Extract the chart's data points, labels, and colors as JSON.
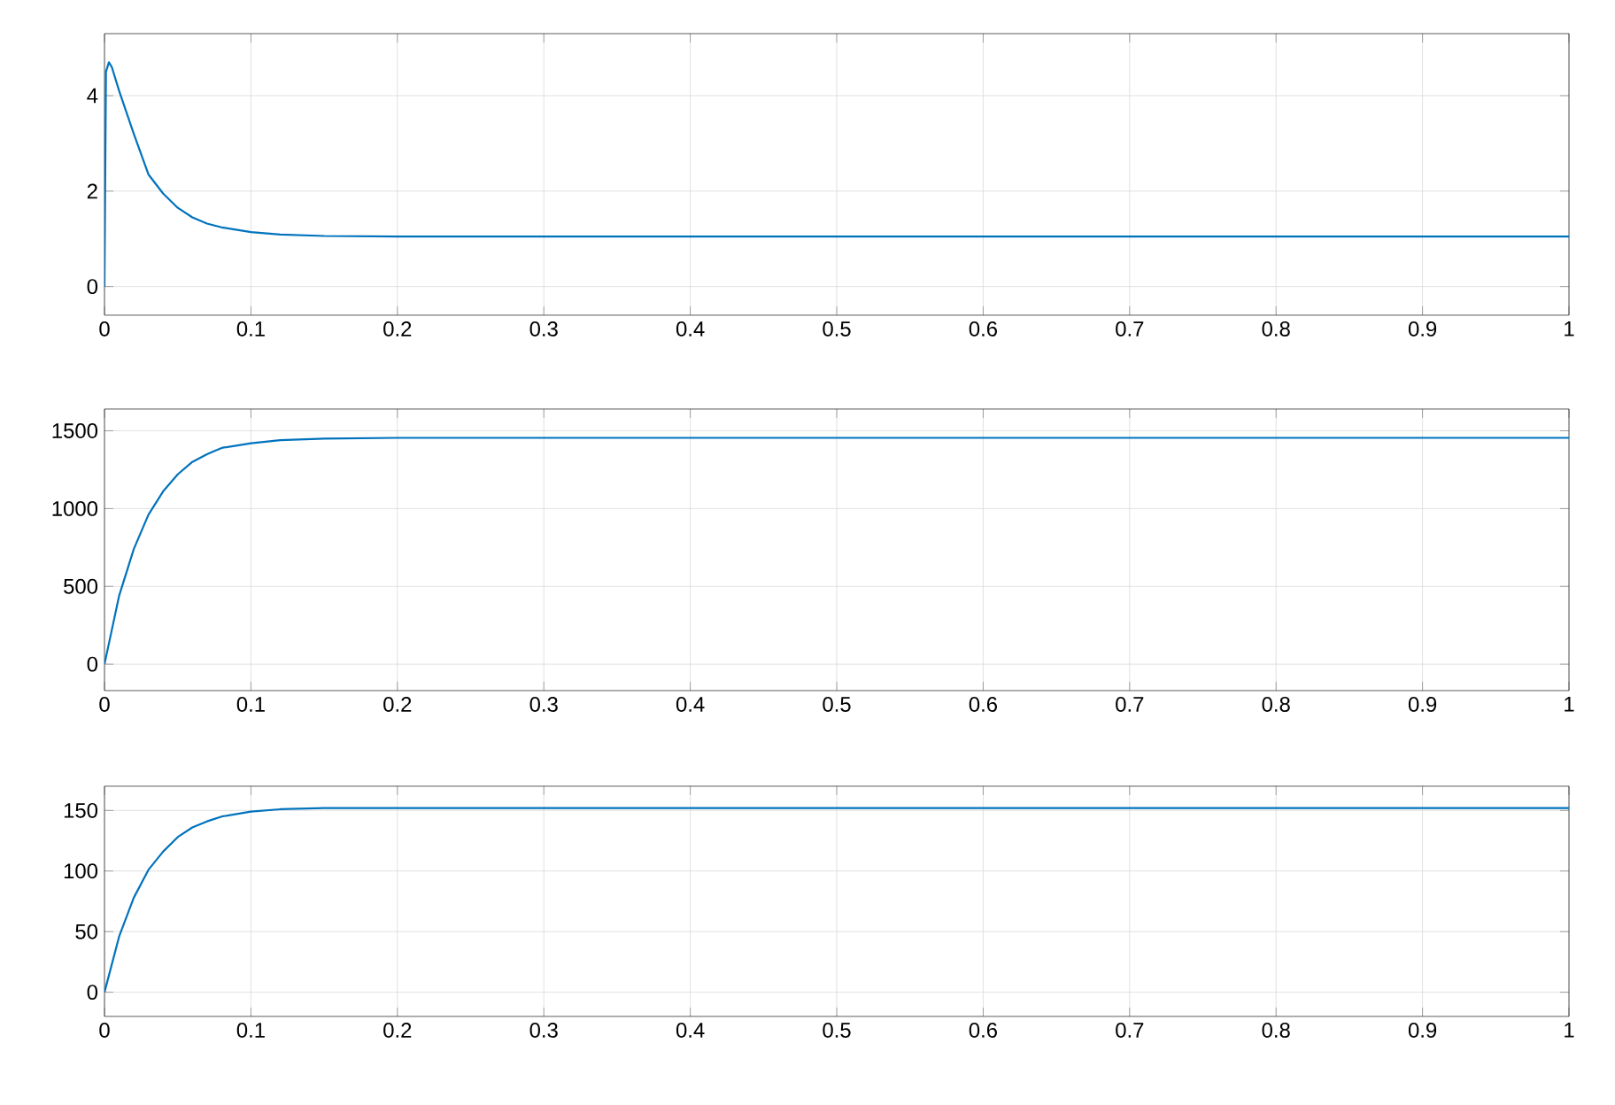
{
  "chart_data": [
    {
      "type": "line",
      "x": [
        0,
        0.001,
        0.003,
        0.005,
        0.01,
        0.02,
        0.03,
        0.04,
        0.05,
        0.06,
        0.07,
        0.08,
        0.1,
        0.12,
        0.15,
        0.2,
        0.3,
        0.5,
        1
      ],
      "values": [
        0,
        4.5,
        4.7,
        4.6,
        4.1,
        3.2,
        2.35,
        1.95,
        1.65,
        1.45,
        1.32,
        1.24,
        1.14,
        1.09,
        1.06,
        1.05,
        1.05,
        1.05,
        1.05
      ],
      "color": "#0072bd",
      "xlim": [
        0,
        1
      ],
      "ylim": [
        -0.6,
        5.3
      ],
      "xticks": [
        0,
        0.1,
        0.2,
        0.3,
        0.4,
        0.5,
        0.6,
        0.7,
        0.8,
        0.9,
        1
      ],
      "yticks": [
        0,
        2,
        4
      ],
      "grid": true
    },
    {
      "type": "line",
      "x": [
        0,
        0.01,
        0.02,
        0.03,
        0.04,
        0.05,
        0.06,
        0.07,
        0.08,
        0.1,
        0.12,
        0.15,
        0.2,
        0.5,
        1
      ],
      "values": [
        0,
        440,
        740,
        960,
        1110,
        1220,
        1300,
        1350,
        1390,
        1420,
        1440,
        1450,
        1455,
        1455,
        1455
      ],
      "color": "#0072bd",
      "xlim": [
        0,
        1
      ],
      "ylim": [
        -170,
        1640
      ],
      "xticks": [
        0,
        0.1,
        0.2,
        0.3,
        0.4,
        0.5,
        0.6,
        0.7,
        0.8,
        0.9,
        1
      ],
      "yticks": [
        0,
        500,
        1000,
        1500
      ],
      "grid": true
    },
    {
      "type": "line",
      "x": [
        0,
        0.01,
        0.02,
        0.03,
        0.04,
        0.05,
        0.06,
        0.07,
        0.08,
        0.1,
        0.12,
        0.15,
        0.2,
        0.5,
        1
      ],
      "values": [
        0,
        46,
        78,
        101,
        116,
        128,
        136,
        141,
        145,
        149,
        151,
        152,
        152,
        152,
        152
      ],
      "color": "#0072bd",
      "xlim": [
        0,
        1
      ],
      "ylim": [
        -20,
        170
      ],
      "xticks": [
        0,
        0.1,
        0.2,
        0.3,
        0.4,
        0.5,
        0.6,
        0.7,
        0.8,
        0.9,
        1
      ],
      "yticks": [
        0,
        50,
        100,
        150
      ],
      "grid": true
    }
  ]
}
